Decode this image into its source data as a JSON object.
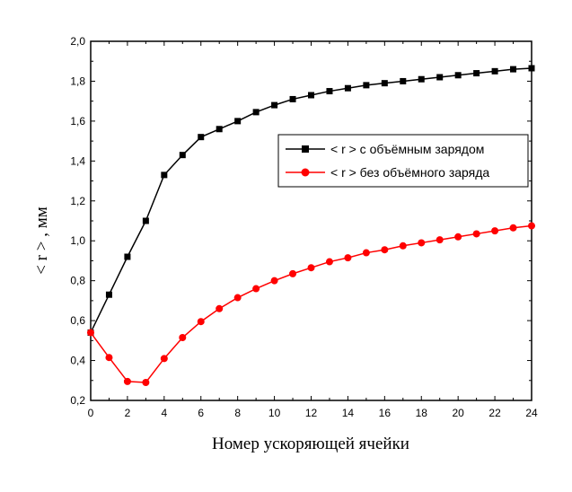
{
  "chart_data": {
    "type": "line",
    "xlabel": "Номер ускоряющей ячейки",
    "ylabel": "< r > , мм",
    "xlim": [
      0,
      24
    ],
    "ylim": [
      0.2,
      2.0
    ],
    "x_ticks": [
      0,
      2,
      4,
      6,
      8,
      10,
      12,
      14,
      16,
      18,
      20,
      22,
      24
    ],
    "y_ticks": [
      0.2,
      0.4,
      0.6,
      0.8,
      1.0,
      1.2,
      1.4,
      1.6,
      1.8,
      2.0
    ],
    "x_tick_labels": [
      "0",
      "2",
      "4",
      "6",
      "8",
      "10",
      "12",
      "14",
      "16",
      "18",
      "20",
      "22",
      "24"
    ],
    "y_tick_labels": [
      "0,2",
      "0,4",
      "0,6",
      "0,8",
      "1,0",
      "1,2",
      "1,4",
      "1,6",
      "1,8",
      "2,0"
    ],
    "grid": false,
    "legend_position": "upper-right",
    "series": [
      {
        "name": "< r > с объёмным зарядом",
        "color": "#000000",
        "marker": "square",
        "x": [
          0,
          1,
          2,
          3,
          4,
          5,
          6,
          7,
          8,
          9,
          10,
          11,
          12,
          13,
          14,
          15,
          16,
          17,
          18,
          19,
          20,
          21,
          22,
          23,
          24
        ],
        "y": [
          0.54,
          0.73,
          0.92,
          1.1,
          1.33,
          1.43,
          1.52,
          1.56,
          1.6,
          1.645,
          1.68,
          1.71,
          1.73,
          1.75,
          1.765,
          1.78,
          1.79,
          1.8,
          1.81,
          1.82,
          1.83,
          1.84,
          1.85,
          1.86,
          1.865
        ]
      },
      {
        "name": "< r > без объёмного заряда",
        "color": "#ff0000",
        "marker": "circle",
        "x": [
          0,
          1,
          2,
          3,
          4,
          5,
          6,
          7,
          8,
          9,
          10,
          11,
          12,
          13,
          14,
          15,
          16,
          17,
          18,
          19,
          20,
          21,
          22,
          23,
          24
        ],
        "y": [
          0.54,
          0.415,
          0.295,
          0.29,
          0.41,
          0.515,
          0.595,
          0.66,
          0.715,
          0.76,
          0.8,
          0.835,
          0.865,
          0.895,
          0.915,
          0.94,
          0.955,
          0.975,
          0.99,
          1.005,
          1.02,
          1.035,
          1.05,
          1.065,
          1.075
        ]
      }
    ]
  }
}
